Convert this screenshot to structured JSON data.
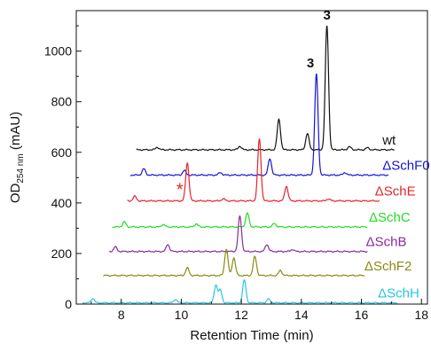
{
  "chart_data": {
    "type": "line",
    "title": "",
    "xlabel": "Retention Time (min)",
    "ylabel_prefix": "OD",
    "ylabel_subscript": "254 nm",
    "ylabel_suffix": " (mAU)",
    "xlim": [
      6.5,
      18.2
    ],
    "ylim": [
      0,
      1160
    ],
    "xticks": [
      8,
      10,
      12,
      14,
      16,
      18
    ],
    "yticks": [
      0,
      200,
      400,
      600,
      800,
      1000
    ],
    "grid": false,
    "annotations": [
      {
        "text": "3",
        "x": 14.85,
        "y": 1125,
        "bold": true
      },
      {
        "text": "3",
        "x": 14.3,
        "y": 935,
        "bold": true
      },
      {
        "text": "*",
        "x": 9.95,
        "y": 430,
        "color": "#e8232a"
      }
    ],
    "series": [
      {
        "name": "wt",
        "color": "#111111",
        "start": 8.5,
        "end": 17.1,
        "baseline": 610,
        "label_x": 16.7,
        "peaks": [
          [
            9.2,
            10
          ],
          [
            11.95,
            14
          ],
          [
            13.25,
            120
          ],
          [
            14.2,
            65
          ],
          [
            14.85,
            490
          ],
          [
            15.6,
            12
          ],
          [
            16.2,
            8
          ]
        ]
      },
      {
        "name": "ΔSchF0",
        "color": "#1414d2",
        "start": 8.3,
        "end": 16.9,
        "baseline": 510,
        "label_x": 16.7,
        "peaks": [
          [
            8.75,
            25
          ],
          [
            10.1,
            18
          ],
          [
            11.3,
            10
          ],
          [
            12.95,
            65
          ],
          [
            14.5,
            400
          ],
          [
            15.45,
            10
          ]
        ]
      },
      {
        "name": "ΔSchE",
        "color": "#e8232a",
        "start": 8.2,
        "end": 16.6,
        "baseline": 408,
        "label_x": 16.45,
        "peaks": [
          [
            8.45,
            18
          ],
          [
            10.2,
            150
          ],
          [
            11.4,
            8
          ],
          [
            12.6,
            245
          ],
          [
            13.5,
            58
          ],
          [
            14.9,
            8
          ]
        ]
      },
      {
        "name": "ΔSchC",
        "color": "#22dd22",
        "start": 7.7,
        "end": 16.2,
        "baseline": 305,
        "label_x": 16.25,
        "peaks": [
          [
            8.1,
            20
          ],
          [
            9.4,
            10
          ],
          [
            10.5,
            12
          ],
          [
            12.2,
            55
          ],
          [
            13.1,
            14
          ]
        ]
      },
      {
        "name": "ΔSchB",
        "color": "#8a2a9c",
        "start": 7.6,
        "end": 16.2,
        "baseline": 208,
        "label_x": 16.15,
        "peaks": [
          [
            7.8,
            18
          ],
          [
            9.55,
            28
          ],
          [
            11.95,
            140
          ],
          [
            12.85,
            28
          ],
          [
            13.7,
            8
          ]
        ]
      },
      {
        "name": "ΔSchF2",
        "color": "#8a8a14",
        "start": 7.4,
        "end": 16.1,
        "baseline": 113,
        "label_x": 16.1,
        "peaks": [
          [
            10.2,
            30
          ],
          [
            11.5,
            105
          ],
          [
            11.75,
            70
          ],
          [
            12.45,
            75
          ],
          [
            13.3,
            20
          ]
        ]
      },
      {
        "name": "ΔSchH",
        "color": "#29c4e6",
        "start": 6.7,
        "end": 17.2,
        "baseline": 5,
        "label_x": 16.55,
        "peaks": [
          [
            7.05,
            18
          ],
          [
            9.8,
            14
          ],
          [
            11.15,
            70
          ],
          [
            11.3,
            50
          ],
          [
            12.1,
            90
          ],
          [
            12.9,
            15
          ]
        ]
      }
    ]
  }
}
